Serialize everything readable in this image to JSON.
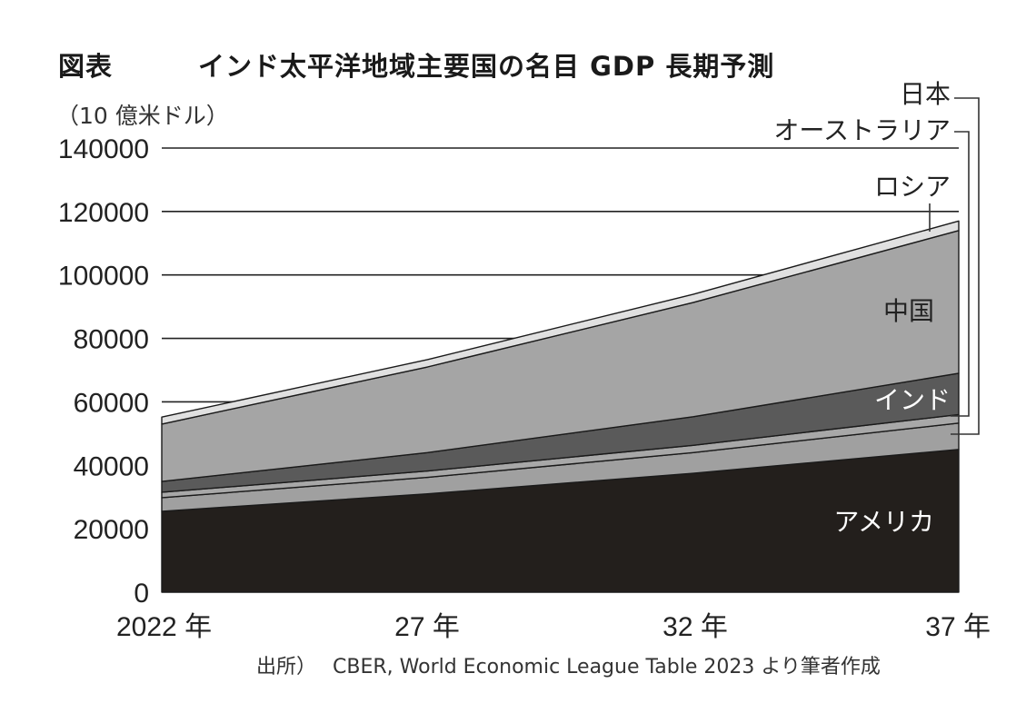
{
  "figure_label": "図表",
  "title": "インド太平洋地域主要国の名目 GDP 長期予測",
  "unit": "（10 億米ドル）",
  "source_prefix": "出所）",
  "source_text": "CBER, World Economic League Table 2023 より筆者作成",
  "colors": {
    "アメリカ": "#231f1c",
    "カナダ系列なし": "",
    "オーストラリア": "#a8a8a8",
    "日本": "#a0a0a0",
    "インド": "#5a5a5a",
    "中国": "#a5a5a5",
    "ロシア": "#e0e0e0",
    "gridline": "#222222"
  },
  "chart_data": {
    "type": "area",
    "stacked": true,
    "title": "インド太平洋地域主要国の名目 GDP 長期予測",
    "ylabel": "（10 億米ドル）",
    "x": [
      "2022 年",
      "27 年",
      "32 年",
      "37 年"
    ],
    "ylim": [
      0,
      140000
    ],
    "yticks": [
      "0",
      "20000",
      "40000",
      "60000",
      "80000",
      "100000",
      "120000",
      "140000"
    ],
    "grid": true,
    "series": [
      {
        "name": "アメリカ",
        "values": [
          25500,
          31000,
          37500,
          45000
        ]
      },
      {
        "name": "日本",
        "values": [
          4300,
          5200,
          6500,
          8300
        ]
      },
      {
        "name": "オーストラリア",
        "values": [
          1700,
          2000,
          2300,
          2700
        ]
      },
      {
        "name": "インド",
        "values": [
          3400,
          5800,
          9000,
          13000
        ]
      },
      {
        "name": "中国",
        "values": [
          18100,
          27000,
          36000,
          45000
        ]
      },
      {
        "name": "ロシア",
        "values": [
          2200,
          2300,
          2600,
          3000
        ]
      }
    ],
    "series_labels": {
      "アメリカ": "アメリカ",
      "中国": "中国",
      "インド": "インド",
      "ロシア": "ロシア",
      "オーストラリア": "オーストラリア",
      "日本": "日本"
    }
  }
}
